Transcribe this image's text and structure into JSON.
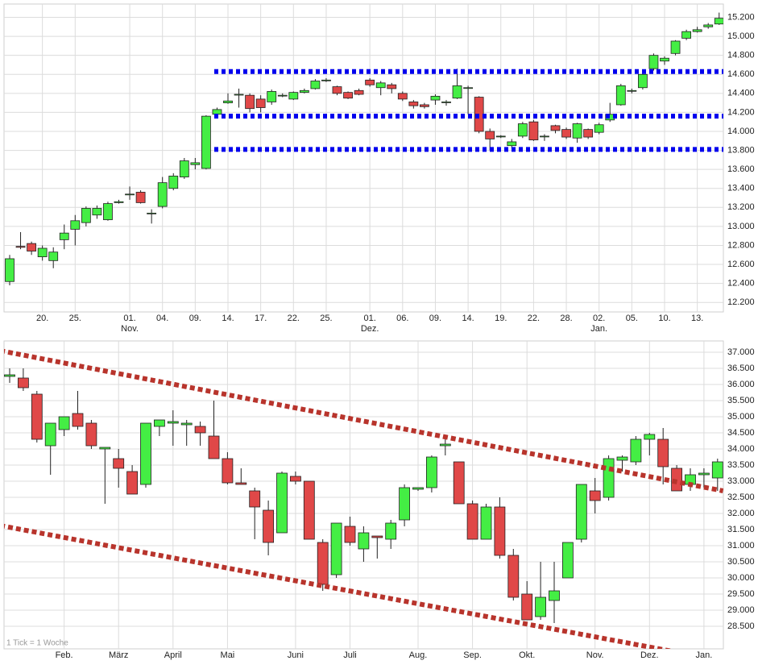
{
  "chart_data": [
    {
      "type": "candlestick",
      "categories": [
        null,
        null,
        null,
        "20.",
        null,
        null,
        "25.",
        null,
        null,
        null,
        null,
        "01.",
        null,
        null,
        "04.",
        null,
        null,
        "09.",
        null,
        null,
        "14.",
        null,
        null,
        "17.",
        null,
        null,
        "22.",
        null,
        null,
        "25.",
        null,
        null,
        null,
        "01.",
        null,
        null,
        "06.",
        null,
        null,
        "09.",
        null,
        null,
        "14.",
        null,
        null,
        "19.",
        null,
        null,
        "22.",
        null,
        null,
        "28.",
        null,
        null,
        "02.",
        null,
        null,
        "05.",
        null,
        null,
        "10.",
        null,
        null,
        "13.",
        null,
        null
      ],
      "month_labels": [
        null,
        null,
        null,
        null,
        null,
        null,
        null,
        null,
        null,
        null,
        null,
        "Nov.",
        null,
        null,
        null,
        null,
        null,
        null,
        null,
        null,
        null,
        null,
        null,
        null,
        null,
        null,
        null,
        null,
        null,
        null,
        null,
        null,
        null,
        "Dez.",
        null,
        null,
        null,
        null,
        null,
        null,
        null,
        null,
        null,
        null,
        null,
        null,
        null,
        null,
        null,
        null,
        null,
        null,
        null,
        null,
        "Jan.",
        null,
        null,
        null,
        null,
        null,
        null,
        null,
        null,
        null,
        null,
        null
      ],
      "open": [
        12420,
        12790,
        12820,
        12680,
        12640,
        12860,
        12970,
        13040,
        13120,
        13070,
        13250,
        13340,
        13360,
        13140,
        13210,
        13400,
        13520,
        13650,
        13610,
        14180,
        14300,
        14390,
        14380,
        14340,
        14310,
        14380,
        14340,
        14410,
        14450,
        14540,
        14470,
        14410,
        14430,
        14540,
        14460,
        14490,
        14400,
        14310,
        14280,
        14330,
        14310,
        14350,
        14460,
        14360,
        14000,
        13950,
        13850,
        13950,
        14100,
        13950,
        14060,
        14020,
        13930,
        14020,
        13990,
        14120,
        14280,
        14430,
        14460,
        14660,
        14740,
        14820,
        14980,
        15050,
        15100,
        15130
      ],
      "high": [
        12700,
        12940,
        12840,
        12800,
        12780,
        13020,
        13120,
        13210,
        13220,
        13260,
        13280,
        13420,
        13380,
        13180,
        13520,
        13560,
        13720,
        13720,
        14170,
        14250,
        14400,
        14450,
        14400,
        14380,
        14440,
        14400,
        14420,
        14450,
        14550,
        14560,
        14480,
        14420,
        14450,
        14560,
        14530,
        14510,
        14420,
        14330,
        14300,
        14390,
        14330,
        14660,
        14480,
        14370,
        14030,
        13960,
        13920,
        14100,
        14120,
        13970,
        14070,
        14040,
        14090,
        14030,
        14090,
        14300,
        14500,
        14450,
        14620,
        14820,
        14790,
        14960,
        15070,
        15100,
        15140,
        15250
      ],
      "low": [
        12380,
        12760,
        12700,
        12640,
        12560,
        12760,
        12800,
        13000,
        13080,
        13060,
        13240,
        13280,
        13240,
        13030,
        13190,
        13380,
        13500,
        13600,
        13600,
        14170,
        14290,
        14250,
        14200,
        14200,
        14280,
        14360,
        14330,
        14400,
        14440,
        14520,
        14380,
        14340,
        14380,
        14470,
        14380,
        14400,
        14320,
        14240,
        14240,
        14280,
        14270,
        14340,
        14180,
        13980,
        13800,
        13930,
        13820,
        13930,
        13900,
        13900,
        13980,
        13920,
        13880,
        13920,
        13970,
        14100,
        14270,
        14400,
        14440,
        14640,
        14700,
        14800,
        14960,
        15040,
        15080,
        15120
      ],
      "close": [
        12660,
        12780,
        12740,
        12770,
        12730,
        12930,
        13060,
        13190,
        13190,
        13240,
        13260,
        13340,
        13250,
        13140,
        13460,
        13530,
        13690,
        13670,
        14160,
        14230,
        14320,
        14390,
        14240,
        14250,
        14420,
        14380,
        14410,
        14430,
        14530,
        14540,
        14400,
        14350,
        14390,
        14490,
        14510,
        14450,
        14340,
        14270,
        14260,
        14370,
        14310,
        14480,
        14460,
        14000,
        13920,
        13950,
        13890,
        14080,
        13910,
        13950,
        14010,
        13940,
        14080,
        13940,
        14070,
        14180,
        14480,
        14430,
        14600,
        14800,
        14770,
        14950,
        15050,
        15070,
        15120,
        15190
      ],
      "up_color": "#44ee44",
      "down_color": "#e04848",
      "ylim": [
        12100,
        15340
      ],
      "yticks": [
        {
          "value": 12200,
          "label": "12.200"
        },
        {
          "value": 12400,
          "label": "12.400"
        },
        {
          "value": 12600,
          "label": "12.600"
        },
        {
          "value": 12800,
          "label": "12.800"
        },
        {
          "value": 13000,
          "label": "13.000"
        },
        {
          "value": 13200,
          "label": "13.200"
        },
        {
          "value": 13400,
          "label": "13.400"
        },
        {
          "value": 13600,
          "label": "13.600"
        },
        {
          "value": 13800,
          "label": "13.800"
        },
        {
          "value": 14000,
          "label": "14.000"
        },
        {
          "value": 14200,
          "label": "14.200"
        },
        {
          "value": 14400,
          "label": "14.400"
        },
        {
          "value": 14600,
          "label": "14.600"
        },
        {
          "value": 14800,
          "label": "14.800"
        },
        {
          "value": 15000,
          "label": "15.000"
        },
        {
          "value": 15200,
          "label": "15.200"
        }
      ],
      "grid": true,
      "levels": [
        {
          "value": 14630,
          "color": "#0000ee"
        },
        {
          "value": 14160,
          "color": "#0000ee"
        },
        {
          "value": 13810,
          "color": "#0000ee"
        }
      ]
    },
    {
      "type": "candlestick",
      "categories": [
        null,
        null,
        null,
        null,
        "Feb.",
        null,
        null,
        null,
        "März",
        null,
        null,
        null,
        "April",
        null,
        null,
        null,
        "Mai",
        null,
        null,
        null,
        null,
        "Juni",
        null,
        null,
        null,
        "Juli",
        null,
        null,
        null,
        null,
        "Aug.",
        null,
        null,
        null,
        "Sep.",
        null,
        null,
        null,
        "Okt.",
        null,
        null,
        null,
        null,
        "Nov.",
        null,
        null,
        null,
        "Dez.",
        null,
        null,
        null,
        "Jan.",
        null
      ],
      "open": [
        36250,
        36200,
        35700,
        34100,
        34600,
        35100,
        34800,
        34000,
        33700,
        33300,
        32900,
        34700,
        34800,
        34750,
        34700,
        34400,
        33700,
        32950,
        32700,
        32100,
        31400,
        33150,
        33000,
        31100,
        30100,
        31600,
        30900,
        31300,
        31200,
        31800,
        32750,
        32800,
        34100,
        33600,
        32300,
        31200,
        32200,
        30700,
        29500,
        28800,
        29300,
        30000,
        31200,
        32700,
        32500,
        33650,
        33600,
        34300,
        34300,
        33400,
        32900,
        33200,
        33100
      ],
      "high": [
        36500,
        36500,
        35800,
        34800,
        35000,
        35800,
        34900,
        34050,
        34000,
        33500,
        34800,
        34900,
        35200,
        34900,
        34850,
        35500,
        33900,
        33400,
        32800,
        32400,
        33300,
        33300,
        33000,
        31200,
        31700,
        31900,
        31600,
        31300,
        31800,
        32900,
        32800,
        33800,
        34300,
        33600,
        32400,
        32300,
        32500,
        30900,
        29900,
        30500,
        30500,
        31100,
        32900,
        33100,
        33800,
        33800,
        34400,
        34500,
        34650,
        33500,
        33400,
        33400,
        33700
      ],
      "low": [
        36050,
        35800,
        34200,
        33200,
        34400,
        34600,
        34000,
        32300,
        32800,
        32600,
        32800,
        34400,
        34100,
        34100,
        34100,
        33700,
        32900,
        32900,
        31200,
        30700,
        31400,
        32900,
        31200,
        29600,
        30000,
        31000,
        30500,
        30600,
        30900,
        31600,
        32700,
        32650,
        33800,
        32300,
        31200,
        31200,
        30600,
        29300,
        28700,
        28700,
        28600,
        30000,
        31100,
        32000,
        32400,
        33300,
        33500,
        33800,
        32900,
        32700,
        32700,
        32800,
        32700
      ],
      "close": [
        36300,
        35900,
        34300,
        34800,
        35000,
        34700,
        34100,
        34050,
        33400,
        32600,
        34800,
        34900,
        34850,
        34800,
        34500,
        33700,
        32950,
        32900,
        32200,
        31100,
        33250,
        33000,
        31200,
        29800,
        31700,
        31100,
        31400,
        31250,
        31700,
        32800,
        32800,
        33750,
        34150,
        32300,
        31200,
        32200,
        30700,
        29400,
        28700,
        29400,
        29600,
        31100,
        32900,
        32400,
        33700,
        33750,
        34300,
        34450,
        33450,
        32700,
        33200,
        33250,
        33600
      ],
      "up_color": "#44ee44",
      "down_color": "#e04848",
      "ylim": [
        27800,
        37350
      ],
      "yticks": [
        {
          "value": 28500,
          "label": "28.500"
        },
        {
          "value": 29000,
          "label": "29.000"
        },
        {
          "value": 29500,
          "label": "29.500"
        },
        {
          "value": 30000,
          "label": "30.000"
        },
        {
          "value": 30500,
          "label": "30.500"
        },
        {
          "value": 31000,
          "label": "31.000"
        },
        {
          "value": 31500,
          "label": "31.500"
        },
        {
          "value": 32000,
          "label": "32.000"
        },
        {
          "value": 32500,
          "label": "32.500"
        },
        {
          "value": 33000,
          "label": "33.000"
        },
        {
          "value": 33500,
          "label": "33.500"
        },
        {
          "value": 34000,
          "label": "34.000"
        },
        {
          "value": 34500,
          "label": "34.500"
        },
        {
          "value": 35000,
          "label": "35.000"
        },
        {
          "value": 35500,
          "label": "35.500"
        },
        {
          "value": 36000,
          "label": "36.000"
        },
        {
          "value": 36500,
          "label": "36.500"
        },
        {
          "value": 37000,
          "label": "37.000"
        }
      ],
      "grid": true,
      "trendlines": [
        {
          "from": {
            "x": -0.7,
            "y": 37050
          },
          "to": {
            "x": 52.4,
            "y": 32700
          },
          "color": "#b8342c"
        },
        {
          "from": {
            "x": -0.7,
            "y": 31625
          },
          "to": {
            "x": 49.3,
            "y": 27675
          },
          "color": "#b8342c"
        }
      ],
      "note": "1 Tick = 1 Woche"
    }
  ]
}
